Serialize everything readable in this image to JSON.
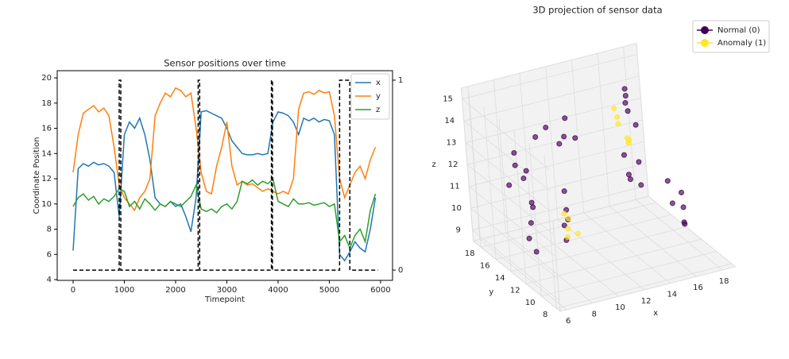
{
  "chart_data": [
    {
      "type": "line",
      "title": "Sensor positions over time",
      "xlabel": "Timepoint",
      "ylabel": "Coordinate Position",
      "x": [
        0,
        100,
        200,
        300,
        400,
        500,
        600,
        700,
        800,
        900,
        1000,
        1100,
        1200,
        1300,
        1400,
        1500,
        1600,
        1700,
        1800,
        1900,
        2000,
        2100,
        2200,
        2300,
        2400,
        2500,
        2600,
        2700,
        2800,
        2900,
        3000,
        3100,
        3200,
        3300,
        3400,
        3500,
        3600,
        3700,
        3800,
        3900,
        4000,
        4100,
        4200,
        4300,
        4400,
        4500,
        4600,
        4700,
        4800,
        4900,
        5000,
        5100,
        5200,
        5300,
        5400,
        5500,
        5600,
        5700,
        5800,
        5900
      ],
      "series": [
        {
          "name": "x",
          "color": "#1f77b4",
          "values": [
            6.3,
            12.8,
            13.2,
            13.0,
            13.3,
            13.1,
            13.2,
            13.0,
            12.5,
            9.0,
            15.5,
            16.5,
            16.0,
            16.8,
            15.5,
            13.5,
            10.5,
            10.0,
            9.8,
            10.2,
            9.8,
            10.0,
            9.0,
            7.8,
            10.5,
            17.3,
            17.4,
            17.2,
            17.0,
            16.8,
            16.0,
            15.0,
            14.5,
            14.0,
            13.9,
            13.9,
            14.0,
            13.9,
            14.0,
            16.5,
            17.3,
            17.2,
            17.0,
            16.5,
            15.5,
            16.8,
            16.6,
            16.8,
            16.5,
            16.7,
            16.6,
            15.5,
            6.0,
            5.5,
            6.2,
            7.0,
            6.5,
            6.2,
            8.0,
            10.5
          ]
        },
        {
          "name": "y",
          "color": "#ff7f0e",
          "values": [
            12.5,
            15.5,
            17.2,
            17.5,
            17.8,
            17.3,
            17.6,
            17.0,
            14.5,
            11.5,
            10.5,
            10.0,
            9.5,
            10.5,
            11.0,
            12.0,
            17.0,
            18.0,
            18.8,
            18.5,
            19.2,
            19.0,
            18.5,
            18.8,
            16.0,
            12.5,
            11.0,
            10.8,
            13.0,
            14.5,
            16.5,
            13.0,
            11.5,
            11.8,
            11.5,
            11.6,
            11.3,
            11.0,
            11.2,
            11.0,
            10.8,
            11.0,
            10.8,
            12.0,
            17.5,
            18.8,
            18.9,
            18.7,
            19.0,
            18.8,
            18.9,
            17.0,
            12.0,
            10.5,
            11.5,
            12.5,
            13.0,
            12.0,
            13.5,
            14.5
          ]
        },
        {
          "name": "z",
          "color": "#2ca02c",
          "values": [
            9.8,
            10.5,
            10.8,
            10.3,
            10.6,
            10.0,
            10.4,
            10.2,
            10.6,
            11.2,
            11.0,
            9.8,
            10.2,
            9.6,
            10.4,
            10.0,
            9.5,
            10.0,
            9.8,
            10.2,
            10.0,
            9.8,
            10.2,
            10.6,
            11.5,
            9.6,
            9.4,
            9.6,
            9.3,
            9.8,
            10.0,
            9.6,
            10.2,
            11.8,
            11.6,
            11.9,
            11.5,
            11.8,
            11.6,
            12.0,
            10.2,
            10.0,
            9.8,
            10.4,
            10.0,
            10.0,
            10.1,
            9.9,
            10.0,
            10.1,
            9.8,
            10.0,
            7.0,
            7.5,
            6.5,
            7.5,
            8.0,
            7.0,
            9.5,
            10.8
          ]
        },
        {
          "axis": "y2",
          "color": "#000000",
          "linestyle": "dashed",
          "x": [
            0,
            900,
            900,
            930,
            930,
            2440,
            2440,
            2470,
            2470,
            3870,
            3870,
            3890,
            3890,
            5200,
            5200,
            5400,
            5400,
            5950
          ],
          "values": [
            0,
            0,
            1,
            1,
            0,
            0,
            1,
            1,
            0,
            0,
            1,
            1,
            0,
            0,
            1,
            1,
            0,
            0
          ]
        }
      ],
      "xlim": [
        -310,
        6233
      ],
      "xticks": [
        0,
        1000,
        2000,
        3000,
        4000,
        5000,
        6000
      ],
      "ylim": [
        3.94,
        20.57
      ],
      "yticks": [
        4,
        6,
        8,
        10,
        12,
        14,
        16,
        18,
        20
      ],
      "y2lim": [
        -0.054,
        1.05
      ],
      "y2ticks": [
        0,
        1
      ],
      "legend": "upper right"
    },
    {
      "type": "scatter3d",
      "title": "3D projection of sensor data",
      "xlabel": "x",
      "ylabel": "y",
      "zlabel": "z",
      "xlim": [
        5.5,
        19
      ],
      "ylim": [
        7.5,
        19
      ],
      "zlim": [
        8.5,
        15.5
      ],
      "xticks": [
        6,
        8,
        10,
        12,
        14,
        16,
        18
      ],
      "yticks": [
        8,
        10,
        12,
        14,
        16,
        18
      ],
      "zticks": [
        9,
        10,
        11,
        12,
        13,
        14,
        15
      ],
      "legend": "upper right",
      "series": [
        {
          "name": "Normal (0)",
          "color": "#440154",
          "x": [
            7.5,
            7.8,
            7.2,
            8.0,
            7.6,
            8.2,
            10,
            11,
            12,
            13,
            12.5,
            11.5,
            10,
            9.5,
            9,
            8.8,
            9.2,
            14,
            14.5,
            13.8,
            15,
            14.2,
            17,
            16.8,
            17.3,
            16.5,
            17.5,
            17.3,
            17,
            17.5,
            16.8,
            17.2,
            16.5,
            6,
            6.5,
            6.2,
            7
          ],
          "y": [
            16,
            15.5,
            16.5,
            15,
            16.2,
            15.8,
            17.5,
            17.8,
            17.2,
            17.5,
            17.8,
            17,
            14,
            13,
            12.5,
            12,
            12.3,
            12,
            11.5,
            11.8,
            12.5,
            13,
            17.5,
            17,
            17.8,
            16.5,
            17.2,
            11,
            10.5,
            11.5,
            12,
            10.8,
            11,
            12,
            12.5,
            11.5,
            13
          ],
          "z": [
            12.5,
            12,
            11.5,
            11,
            13,
            12.2,
            13,
            13.2,
            12.8,
            12.5,
            13.4,
            12.6,
            11.5,
            11,
            10.5,
            10,
            10.8,
            12,
            11.8,
            12.3,
            12.5,
            12.8,
            13.5,
            14,
            13,
            14.5,
            12.5,
            10.5,
            10,
            11,
            11.5,
            9.8,
            10.8,
            10.5,
            11,
            10,
            11.5
          ]
        },
        {
          "name": "Anomaly (1)",
          "color": "#fde725",
          "x": [
            9,
            9.3,
            8.8,
            9.5,
            9.1,
            15.5,
            15.8,
            16,
            15.2,
            16.2,
            15.6
          ],
          "y": [
            12,
            12.4,
            11.8,
            11.6,
            12.6,
            16,
            16.5,
            15.5,
            15.8,
            16,
            15
          ],
          "z": [
            10.5,
            10.8,
            10.2,
            10.3,
            11,
            13.5,
            13,
            12.5,
            14,
            12.2,
            12.8
          ]
        }
      ]
    }
  ]
}
